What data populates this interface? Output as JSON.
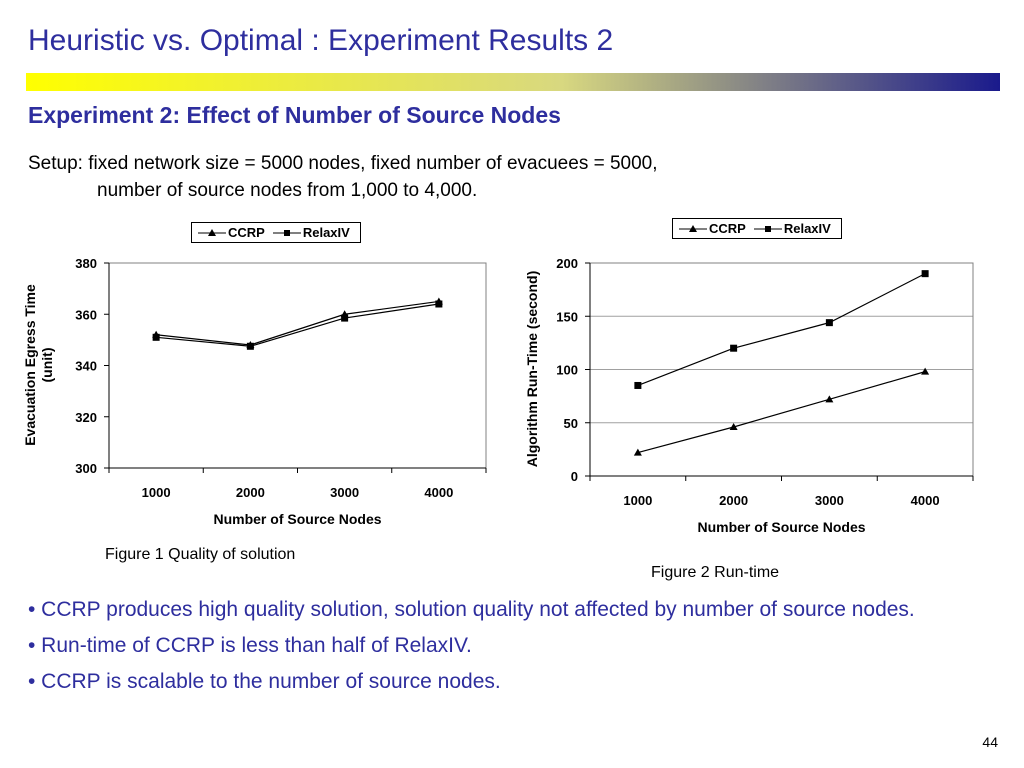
{
  "slide": {
    "title": "Heuristic vs. Optimal : Experiment Results 2",
    "subtitle": "Experiment 2: Effect of Number of Source Nodes",
    "setup_line1": "Setup: fixed network size = 5000 nodes, fixed number of evacuees = 5000,",
    "setup_line2": "number of source nodes from  1,000 to 4,000.",
    "caption1": "Figure 1 Quality of solution",
    "caption2": "Figure 2  Run-time",
    "bullets": [
      "• CCRP produces high quality solution, solution quality not affected by number of source nodes.",
      "• Run-time of CCRP is less than half of RelaxIV.",
      "• CCRP is scalable to the number of source nodes."
    ],
    "page_number": "44",
    "colors": {
      "title": "#2e2e9e",
      "bar_start": "#ffff00",
      "bar_end": "#1a1a8c"
    }
  },
  "chart_data": [
    {
      "type": "line",
      "xlabel": "Number of Source Nodes",
      "ylabel": "Evacuation Egress Time (unit)",
      "x": [
        1000,
        2000,
        3000,
        4000
      ],
      "ylim": [
        300,
        380
      ],
      "yticks": [
        300,
        320,
        340,
        360,
        380
      ],
      "legend": "top-center",
      "series": [
        {
          "name": "CCRP",
          "marker": "triangle",
          "values": [
            352,
            348,
            360,
            365
          ]
        },
        {
          "name": "RelaxIV",
          "marker": "square",
          "values": [
            351,
            347.5,
            358.5,
            364
          ]
        }
      ]
    },
    {
      "type": "line",
      "xlabel": "Number of Source Nodes",
      "ylabel": "Algorithm Run-Time (second)",
      "x": [
        1000,
        2000,
        3000,
        4000
      ],
      "ylim": [
        0,
        200
      ],
      "yticks": [
        0,
        50,
        100,
        150,
        200
      ],
      "grid": true,
      "legend": "top-right",
      "series": [
        {
          "name": "CCRP",
          "marker": "triangle",
          "values": [
            22,
            46,
            72,
            98
          ]
        },
        {
          "name": "RelaxIV",
          "marker": "square",
          "values": [
            85,
            120,
            144,
            190
          ]
        }
      ]
    }
  ]
}
